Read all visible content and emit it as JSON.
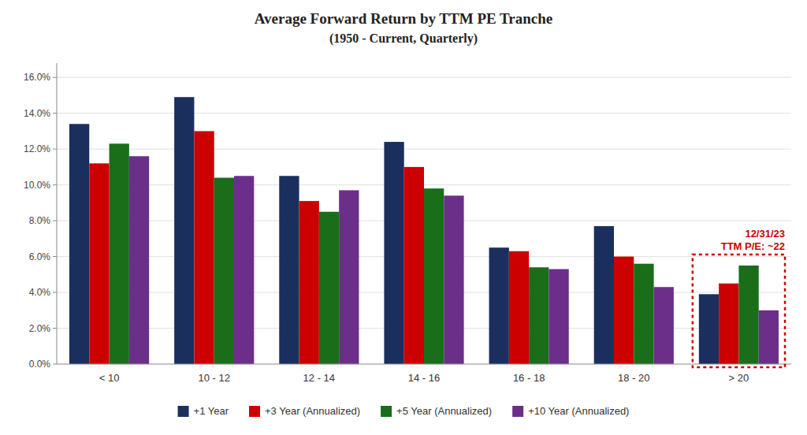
{
  "chart_data": {
    "type": "bar",
    "title": "Average Forward Return by TTM PE Tranche",
    "subtitle": "(1950 - Current, Quarterly)",
    "categories": [
      "< 10",
      "10 - 12",
      "12 - 14",
      "14 - 16",
      "16 - 18",
      "18 - 20",
      "> 20"
    ],
    "series": [
      {
        "name": "+1 Year",
        "color": "#1a2f5e",
        "values": [
          0.134,
          0.149,
          0.105,
          0.124,
          0.065,
          0.077,
          0.039
        ]
      },
      {
        "name": "+3 Year (Annualized)",
        "color": "#cc0000",
        "values": [
          0.112,
          0.13,
          0.091,
          0.11,
          0.063,
          0.06,
          0.045
        ]
      },
      {
        "name": "+5 Year (Annualized)",
        "color": "#1a6e1a",
        "values": [
          0.123,
          0.104,
          0.085,
          0.098,
          0.054,
          0.056,
          0.055
        ]
      },
      {
        "name": "+10 Year (Annualized)",
        "color": "#6b2f8a",
        "values": [
          0.116,
          0.105,
          0.097,
          0.094,
          0.053,
          0.043,
          0.03
        ]
      }
    ],
    "ylim": [
      0,
      0.168
    ],
    "yticks": [
      {
        "value": 0.0,
        "label": "0.0%"
      },
      {
        "value": 0.02,
        "label": "2.0%"
      },
      {
        "value": 0.04,
        "label": "4.0%"
      },
      {
        "value": 0.06,
        "label": "6.0%"
      },
      {
        "value": 0.08,
        "label": "8.0%"
      },
      {
        "value": 0.1,
        "label": "10.0%"
      },
      {
        "value": 0.12,
        "label": "12.0%"
      },
      {
        "value": 0.14,
        "label": "14.0%"
      },
      {
        "value": 0.16,
        "label": "16.0%"
      }
    ],
    "grid": true,
    "legend": "bottom",
    "annotations": [
      {
        "text": "12/31/23\nTTM P/E: ~22",
        "color": "#cc0000"
      }
    ]
  }
}
